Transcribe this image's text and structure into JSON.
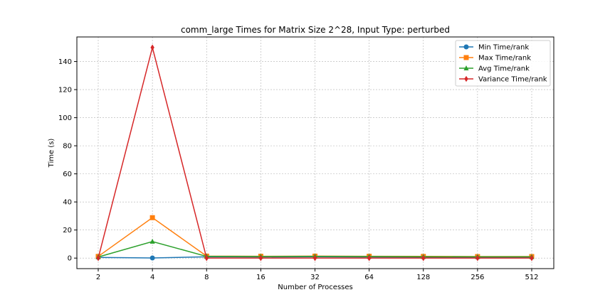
{
  "chart_data": {
    "type": "line",
    "title": "comm_large Times for Matrix Size 2^28, Input Type: perturbed",
    "xlabel": "Number of Processes",
    "ylabel": "Time (s)",
    "categories": [
      "2",
      "4",
      "8",
      "16",
      "32",
      "64",
      "128",
      "256",
      "512"
    ],
    "ylim": [
      -7.5,
      157.5
    ],
    "yticks": [
      0,
      20,
      40,
      60,
      80,
      100,
      120,
      140
    ],
    "grid": true,
    "legend_position": "top-right",
    "series": [
      {
        "name": "Min Time/rank",
        "color": "#1f77b4",
        "marker": "circle",
        "values": [
          0.5,
          0.1,
          0.9,
          0.8,
          0.9,
          0.8,
          0.7,
          0.6,
          0.6
        ]
      },
      {
        "name": "Max Time/rank",
        "color": "#ff7f0e",
        "marker": "square",
        "values": [
          1.2,
          28.8,
          1.4,
          1.3,
          1.4,
          1.3,
          1.2,
          1.1,
          1.1
        ]
      },
      {
        "name": "Avg Time/rank",
        "color": "#2ca02c",
        "marker": "triangle",
        "values": [
          0.8,
          11.8,
          1.2,
          1.1,
          1.2,
          1.1,
          1.0,
          0.9,
          0.9
        ]
      },
      {
        "name": "Variance Time/rank",
        "color": "#d62728",
        "marker": "diamond",
        "values": [
          0.0,
          150.0,
          0.0,
          0.0,
          0.0,
          0.0,
          0.0,
          0.0,
          0.0
        ]
      }
    ]
  }
}
